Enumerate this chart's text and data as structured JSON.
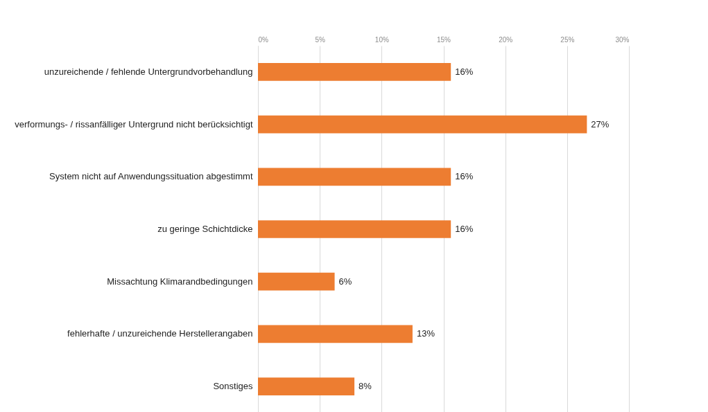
{
  "chart_data": {
    "type": "bar",
    "orientation": "horizontal",
    "categories": [
      "unzureichende / fehlende Untergrundvorbehandlung",
      "verformungs- / rissanfälliger Untergrund nicht berücksichtigt",
      "System nicht auf Anwendungssituation abgestimmt",
      "zu geringe Schichtdicke",
      "Missachtung Klimarandbedingungen",
      "fehlerhafte / unzureichende Herstellerangaben",
      "Sonstiges"
    ],
    "values": [
      15.6,
      26.6,
      15.6,
      15.6,
      6.2,
      12.5,
      7.8
    ],
    "value_labels": [
      "16%",
      "27%",
      "16%",
      "16%",
      "6%",
      "13%",
      "8%"
    ],
    "color": "#ed7d31",
    "xlim": [
      0,
      30
    ],
    "xticks": [
      {
        "value": 0,
        "label": "0%"
      },
      {
        "value": 5,
        "label": "5%"
      },
      {
        "value": 10,
        "label": "10%"
      },
      {
        "value": 15,
        "label": "15%"
      },
      {
        "value": 20,
        "label": "20%"
      },
      {
        "value": 25,
        "label": "25%"
      },
      {
        "value": 30,
        "label": "30%"
      }
    ],
    "grid": "x"
  }
}
